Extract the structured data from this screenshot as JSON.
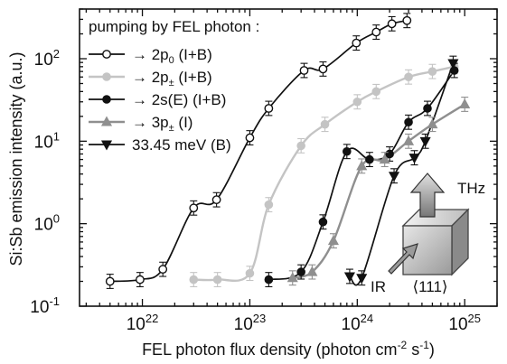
{
  "chart_data": {
    "type": "scatter",
    "xlabel": "FEL photon flux density (photon cm",
    "xlabel_sup1": "-2",
    "xlabel_mid": " s",
    "xlabel_sup2": "-1",
    "xlabel_end": ")",
    "ylabel": "Si:Sb emission intensity (a.u.)",
    "x_scale": "log",
    "y_scale": "log",
    "xlim": [
      2.6e+21,
      2e+25
    ],
    "ylim": [
      0.1,
      400
    ],
    "x_tick_labels": [
      {
        "value": 1e+22,
        "base": "10",
        "exp": "22"
      },
      {
        "value": 1e+23,
        "base": "10",
        "exp": "23"
      },
      {
        "value": 1e+24,
        "base": "10",
        "exp": "24"
      },
      {
        "value": 1e+25,
        "base": "10",
        "exp": "25"
      }
    ],
    "y_tick_labels": [
      {
        "value": 0.1,
        "label": "10",
        "exp": "-1"
      },
      {
        "value": 1,
        "label": "10",
        "exp": "0"
      },
      {
        "value": 10,
        "label": "10",
        "exp": "1"
      },
      {
        "value": 100,
        "label": "10",
        "exp": "2"
      }
    ],
    "legend_title": "pumping by FEL photon :",
    "legend_position": "top-left",
    "series": [
      {
        "name": "→ 2p",
        "name_sub": "0",
        "name_suffix": " (I+B)",
        "marker": "open-circle",
        "color": "#111111",
        "x": [
          5e+21,
          9.5e+21,
          1.55e+22,
          3e+22,
          4.9e+22,
          1e+23,
          1.5e+23,
          3.2e+23,
          4.8e+23,
          9.8e+23,
          1.5e+24,
          2.1e+24,
          2.9e+24
        ],
        "y": [
          0.2,
          0.21,
          0.28,
          1.55,
          1.95,
          11,
          25,
          72,
          75,
          155,
          210,
          265,
          290
        ]
      },
      {
        "name": "→ 2p",
        "name_sub": "±",
        "name_suffix": " (I+B)",
        "marker": "filled-circle",
        "color": "#c4c4c4",
        "x": [
          3e+22,
          5e+22,
          1e+23,
          1.5e+23,
          3e+23,
          5e+23,
          1e+24,
          1.5e+24,
          3e+24,
          5e+24,
          8e+24
        ],
        "y": [
          0.21,
          0.21,
          0.25,
          1.7,
          8.8,
          16,
          30,
          40,
          60,
          70,
          80
        ]
      },
      {
        "name": "→ 2s(E)",
        "name_sub": "",
        "name_suffix": " (I+B)",
        "marker": "filled-circle",
        "color": "#111111",
        "x": [
          1.5e+23,
          3e+23,
          4.8e+23,
          8e+23,
          1.3e+24,
          2e+24,
          3e+24,
          4.5e+24,
          8e+24
        ],
        "y": [
          0.21,
          0.26,
          1.05,
          7.5,
          6,
          7,
          17,
          25,
          72
        ]
      },
      {
        "name": "→ 3p",
        "name_sub": "±",
        "name_suffix": " (I)",
        "marker": "triangle-up",
        "color": "#8f8f8f",
        "x": [
          2.5e+23,
          3.8e+23,
          6e+23,
          1.1e+24,
          1.8e+24,
          3e+24,
          5e+24,
          1e+25
        ],
        "y": [
          0.22,
          0.26,
          0.62,
          5.0,
          6.0,
          10,
          16,
          28
        ]
      },
      {
        "name": "33.45 meV (B)",
        "name_sub": "",
        "name_suffix": "",
        "marker": "triangle-down",
        "color": "#111111",
        "x": [
          8.5e+23,
          1.1e+24,
          2.2e+24,
          3.4e+24,
          4.3e+24,
          7.8e+24
        ],
        "y": [
          0.23,
          0.22,
          3.8,
          6.3,
          10,
          88
        ]
      }
    ],
    "inset": {
      "label_thz": "THz",
      "label_ir": "IR",
      "label_dir": "⟨111⟩"
    }
  }
}
